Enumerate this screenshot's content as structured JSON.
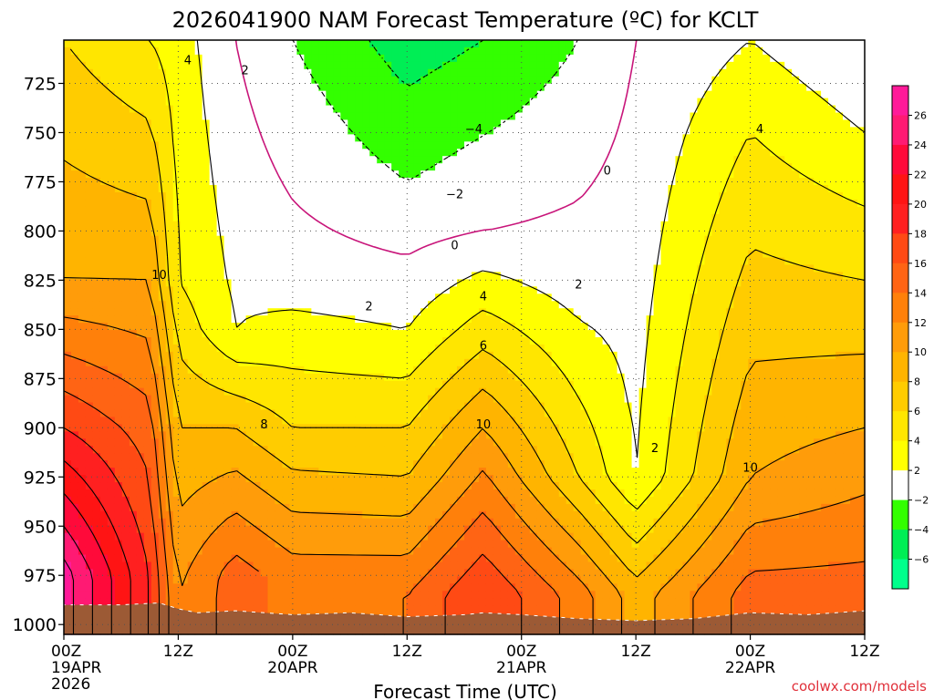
{
  "chart_data": {
    "type": "contour",
    "title": "2026041900 NAM Forecast Temperature (ºC) for KCLT",
    "xlabel": "Forecast Time (UTC)",
    "credit": "coolwx.com/models",
    "x_ticks": [
      {
        "l1": "00Z",
        "l2": "19APR",
        "l3": "2026"
      },
      {
        "l1": "12Z",
        "l2": "",
        "l3": ""
      },
      {
        "l1": "00Z",
        "l2": "20APR",
        "l3": ""
      },
      {
        "l1": "12Z",
        "l2": "",
        "l3": ""
      },
      {
        "l1": "00Z",
        "l2": "21APR",
        "l3": ""
      },
      {
        "l1": "12Z",
        "l2": "",
        "l3": ""
      },
      {
        "l1": "00Z",
        "l2": "22APR",
        "l3": ""
      },
      {
        "l1": "12Z",
        "l2": "",
        "l3": ""
      }
    ],
    "y_ticks": [
      725,
      750,
      775,
      800,
      825,
      850,
      875,
      900,
      925,
      950,
      975,
      1000
    ],
    "x_hours": [
      0,
      84
    ],
    "y_range_hpa": [
      703,
      1005
    ],
    "grid": true,
    "colorbar": {
      "labels": [
        "26",
        "24",
        "22",
        "20",
        "18",
        "16",
        "14",
        "12",
        "10",
        "8",
        "6",
        "4",
        "2",
        "−2",
        "−4",
        "−6"
      ],
      "colors": [
        "#ff1a99",
        "#ff1a73",
        "#ff0a3a",
        "#ff1414",
        "#ff2020",
        "#ff4a14",
        "#ff6414",
        "#ff800a",
        "#ff9c0a",
        "#ffb400",
        "#ffcc00",
        "#ffe600",
        "#ffff00",
        "#ffffff",
        "#33ff00",
        "#00ee55",
        "#00ff8c"
      ]
    },
    "temperature_profiles": [
      {
        "hour": 0,
        "values": [
          {
            "p": 703,
            "t": 6
          },
          {
            "p": 825,
            "t": 10
          },
          {
            "p": 900,
            "t": 18
          },
          {
            "p": 975,
            "t": 27
          }
        ]
      },
      {
        "hour": 9,
        "values": [
          {
            "p": 703,
            "t": 4
          },
          {
            "p": 825,
            "t": 10
          },
          {
            "p": 900,
            "t": 15
          },
          {
            "p": 975,
            "t": 18
          }
        ]
      },
      {
        "hour": 12,
        "values": [
          {
            "p": 703,
            "t": 3
          },
          {
            "p": 825,
            "t": 4
          },
          {
            "p": 900,
            "t": 8
          },
          {
            "p": 985,
            "t": 12
          }
        ]
      },
      {
        "hour": 18,
        "values": [
          {
            "p": 703,
            "t": 0
          },
          {
            "p": 850,
            "t": 2
          },
          {
            "p": 900,
            "t": 8
          },
          {
            "p": 975,
            "t": 15
          }
        ]
      },
      {
        "hour": 24,
        "values": [
          {
            "p": 703,
            "t": -2
          },
          {
            "p": 825,
            "t": 1
          },
          {
            "p": 900,
            "t": 6
          },
          {
            "p": 975,
            "t": 13
          }
        ]
      },
      {
        "hour": 36,
        "values": [
          {
            "p": 703,
            "t": -5
          },
          {
            "p": 775,
            "t": -2
          },
          {
            "p": 850,
            "t": 2
          },
          {
            "p": 925,
            "t": 8
          },
          {
            "p": 985,
            "t": 14
          }
        ]
      },
      {
        "hour": 44,
        "values": [
          {
            "p": 703,
            "t": -4
          },
          {
            "p": 800,
            "t": 0
          },
          {
            "p": 850,
            "t": 5
          },
          {
            "p": 900,
            "t": 10
          },
          {
            "p": 985,
            "t": 18
          }
        ]
      },
      {
        "hour": 54,
        "values": [
          {
            "p": 703,
            "t": -2
          },
          {
            "p": 825,
            "t": 1
          },
          {
            "p": 925,
            "t": 6
          },
          {
            "p": 985,
            "t": 13
          }
        ]
      },
      {
        "hour": 60,
        "values": [
          {
            "p": 703,
            "t": 0
          },
          {
            "p": 925,
            "t": 2
          },
          {
            "p": 985,
            "t": 9
          }
        ]
      },
      {
        "hour": 72,
        "values": [
          {
            "p": 703,
            "t": 2
          },
          {
            "p": 750,
            "t": 4
          },
          {
            "p": 925,
            "t": 10
          },
          {
            "p": 985,
            "t": 15
          }
        ]
      },
      {
        "hour": 84,
        "values": [
          {
            "p": 703,
            "t": 0
          },
          {
            "p": 750,
            "t": 2
          },
          {
            "p": 900,
            "t": 10
          },
          {
            "p": 985,
            "t": 15
          }
        ]
      }
    ],
    "contour_labels": [
      {
        "text": "4",
        "hour": 13,
        "p": 713
      },
      {
        "text": "2",
        "hour": 19,
        "p": 718
      },
      {
        "text": "10",
        "hour": 10,
        "p": 822
      },
      {
        "text": "8",
        "hour": 21,
        "p": 898
      },
      {
        "text": "2",
        "hour": 32,
        "p": 838
      },
      {
        "text": "4",
        "hour": 44,
        "p": 833
      },
      {
        "text": "6",
        "hour": 44,
        "p": 858
      },
      {
        "text": "10",
        "hour": 44,
        "p": 898
      },
      {
        "text": "−2",
        "hour": 41,
        "p": 781
      },
      {
        "text": "−4",
        "hour": 43,
        "p": 748
      },
      {
        "text": "0",
        "hour": 41,
        "p": 807
      },
      {
        "text": "0",
        "hour": 57,
        "p": 769
      },
      {
        "text": "2",
        "hour": 54,
        "p": 827
      },
      {
        "text": "2",
        "hour": 62,
        "p": 910
      },
      {
        "text": "10",
        "hour": 72,
        "p": 920
      },
      {
        "text": "4",
        "hour": 73,
        "p": 748
      }
    ]
  }
}
